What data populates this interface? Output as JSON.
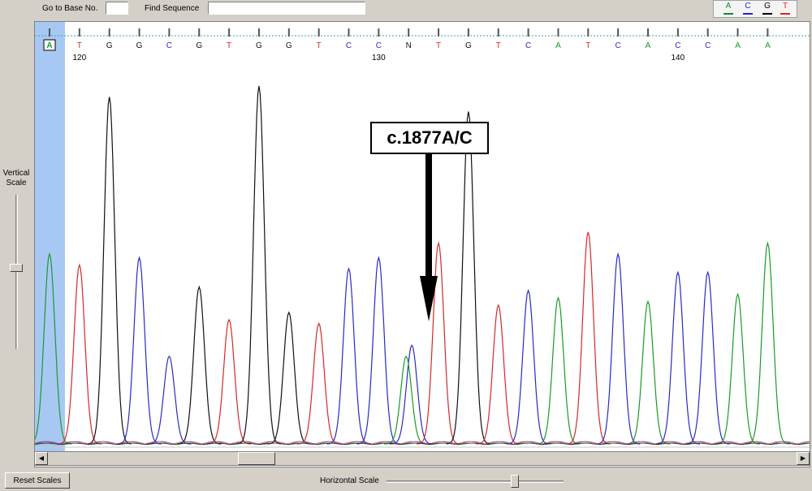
{
  "toolbar": {
    "goto_label": "Go to Base No.",
    "goto_value": "",
    "find_label": "Find Sequence",
    "find_value": ""
  },
  "legend": [
    {
      "base": "A",
      "color": "#1a8a2a"
    },
    {
      "base": "C",
      "color": "#2222cc"
    },
    {
      "base": "G",
      "color": "#000000"
    },
    {
      "base": "T",
      "color": "#dd2222"
    }
  ],
  "vertical_scale": {
    "label_line1": "Vertical",
    "label_line2": "Scale"
  },
  "horizontal_scale": {
    "label": "Horizontal Scale"
  },
  "reset_button": {
    "label": "Reset Scales"
  },
  "base_colors": {
    "A": "#1a9a2a",
    "C": "#2a2ac8",
    "G": "#111111",
    "T": "#d42a2a",
    "N": "#111111"
  },
  "sequence": {
    "first_base_number": 119,
    "bases": [
      "A",
      "T",
      "G",
      "G",
      "C",
      "G",
      "T",
      "G",
      "G",
      "T",
      "C",
      "C",
      "N",
      "T",
      "G",
      "T",
      "C",
      "A",
      "T",
      "C",
      "A",
      "C",
      "C",
      "A",
      "A"
    ],
    "position_labels": [
      {
        "index": 1,
        "text": "120"
      },
      {
        "index": 11,
        "text": "130"
      },
      {
        "index": 21,
        "text": "140"
      }
    ],
    "selected_index": 0
  },
  "trace": {
    "peaks": [
      {
        "base": "A",
        "height": 0.52
      },
      {
        "base": "T",
        "height": 0.49
      },
      {
        "base": "G",
        "height": 0.95
      },
      {
        "base": "C",
        "height": 0.51
      },
      {
        "base": "C",
        "height": 0.24
      },
      {
        "base": "G",
        "height": 0.43
      },
      {
        "base": "T",
        "height": 0.34
      },
      {
        "base": "G",
        "height": 0.98
      },
      {
        "base": "G",
        "height": 0.36
      },
      {
        "base": "T",
        "height": 0.33
      },
      {
        "base": "C",
        "height": 0.48
      },
      {
        "base": "C",
        "height": 0.51
      },
      {
        "base": "C",
        "height": 0.27
      },
      {
        "base": "A",
        "height": 0.24
      },
      {
        "base": "T",
        "height": 0.55
      },
      {
        "base": "G",
        "height": 0.91
      },
      {
        "base": "T",
        "height": 0.38
      },
      {
        "base": "C",
        "height": 0.42
      },
      {
        "base": "A",
        "height": 0.4
      },
      {
        "base": "T",
        "height": 0.58
      },
      {
        "base": "C",
        "height": 0.52
      },
      {
        "base": "A",
        "height": 0.39
      },
      {
        "base": "C",
        "height": 0.47
      },
      {
        "base": "C",
        "height": 0.47
      },
      {
        "base": "A",
        "height": 0.41
      },
      {
        "base": "A",
        "height": 0.55
      }
    ]
  },
  "annotation": {
    "label": "c.1877A/C"
  }
}
